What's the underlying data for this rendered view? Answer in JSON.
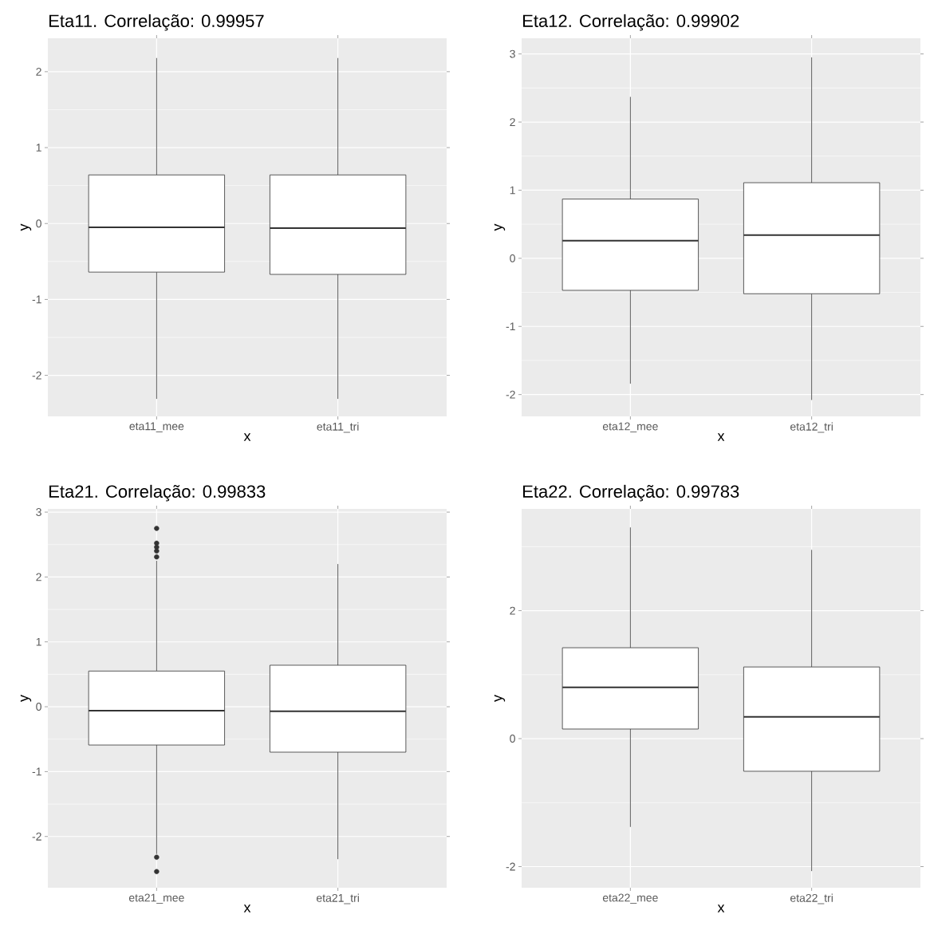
{
  "chart_data": [
    {
      "type": "box",
      "title": "Eta11. Correlação: 0.99957",
      "xlabel": "x",
      "ylabel": "y",
      "categories": [
        "eta11_mee",
        "eta11_tri"
      ],
      "grid": true,
      "ylim": [
        -2.54,
        2.44
      ],
      "yticks": [
        -2,
        -1,
        0,
        1,
        2
      ],
      "boxes": [
        {
          "low": -2.31,
          "q1": -0.64,
          "median": -0.05,
          "q3": 0.64,
          "high": 2.18
        },
        {
          "low": -2.31,
          "q1": -0.67,
          "median": -0.06,
          "q3": 0.64,
          "high": 2.18
        }
      ]
    },
    {
      "type": "box",
      "title": "Eta12. Correlação: 0.99902",
      "xlabel": "x",
      "ylabel": "y",
      "categories": [
        "eta12_mee",
        "eta12_tri"
      ],
      "grid": true,
      "ylim": [
        -2.32,
        3.23
      ],
      "yticks": [
        -2,
        -1,
        0,
        1,
        2,
        3
      ],
      "boxes": [
        {
          "low": -1.84,
          "q1": -0.47,
          "median": 0.26,
          "q3": 0.87,
          "high": 2.37
        },
        {
          "low": -2.08,
          "q1": -0.52,
          "median": 0.34,
          "q3": 1.11,
          "high": 2.95
        }
      ]
    },
    {
      "type": "box",
      "title": "Eta21. Correlação: 0.99833",
      "xlabel": "x",
      "ylabel": "y",
      "categories": [
        "eta21_mee",
        "eta21_tri"
      ],
      "grid": true,
      "ylim": [
        -2.79,
        3.05
      ],
      "yticks": [
        -2,
        -1,
        0,
        1,
        2,
        3
      ],
      "boxes": [
        {
          "low": -2.27,
          "q1": -0.59,
          "median": -0.06,
          "q3": 0.55,
          "high": 2.25,
          "outliers": [
            2.75,
            2.52,
            2.46,
            2.4,
            2.31,
            -2.32,
            -2.54
          ]
        },
        {
          "low": -2.35,
          "q1": -0.7,
          "median": -0.07,
          "q3": 0.64,
          "high": 2.2
        }
      ]
    },
    {
      "type": "box",
      "title": "Eta22. Correlação: 0.99783",
      "xlabel": "x",
      "ylabel": "y",
      "categories": [
        "eta22_mee",
        "eta22_tri"
      ],
      "grid": true,
      "ylim": [
        -2.33,
        3.59
      ],
      "yticks": [
        -2,
        {
          "value": -1,
          "label": null
        },
        0,
        {
          "value": 1,
          "label": null
        },
        2,
        {
          "value": 3,
          "label": null
        }
      ],
      "boxes": [
        {
          "low": -1.38,
          "q1": 0.15,
          "median": 0.8,
          "q3": 1.42,
          "high": 3.3
        },
        {
          "low": -2.07,
          "q1": -0.51,
          "median": 0.34,
          "q3": 1.12,
          "high": 2.95
        }
      ]
    }
  ]
}
